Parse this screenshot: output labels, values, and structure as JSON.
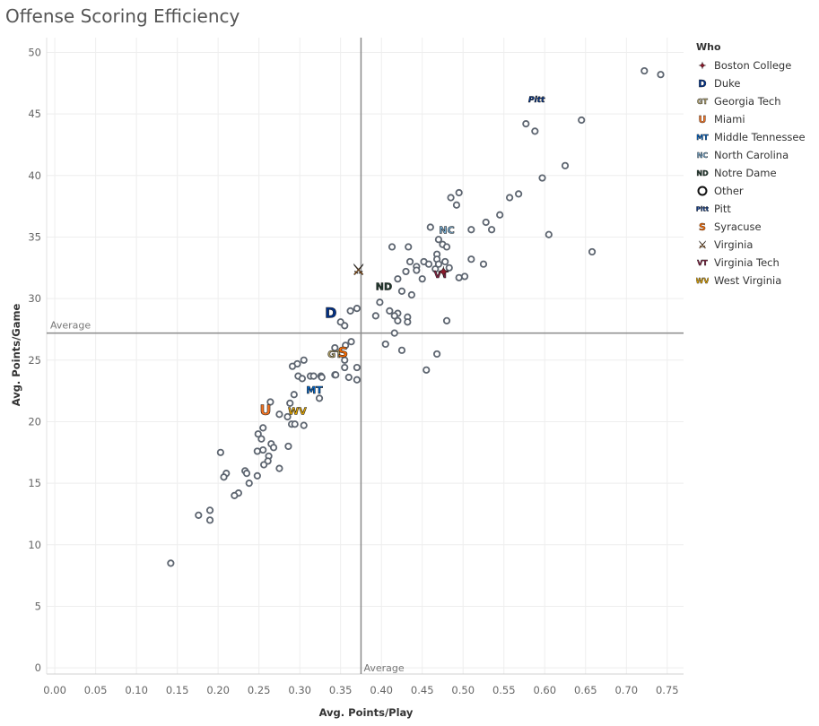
{
  "title": "Offense Scoring Efficiency",
  "legend": {
    "title": "Who",
    "items": [
      {
        "label": "Boston College",
        "color": "#8b1a2b",
        "icon": "boston-college-logo-icon",
        "glyph": "✦"
      },
      {
        "label": "Duke",
        "color": "#003087",
        "icon": "duke-logo-icon",
        "glyph": "D"
      },
      {
        "label": "Georgia Tech",
        "color": "#b3a369",
        "icon": "georgia-tech-logo-icon",
        "glyph": "GT"
      },
      {
        "label": "Miami",
        "color": "#f47321",
        "icon": "miami-logo-icon",
        "glyph": "U"
      },
      {
        "label": "Middle Tennessee",
        "color": "#0066cc",
        "icon": "middle-tennessee-logo-icon",
        "glyph": "MT"
      },
      {
        "label": "North Carolina",
        "color": "#7bafd4",
        "icon": "north-carolina-logo-icon",
        "glyph": "NC"
      },
      {
        "label": "Notre Dame",
        "color": "#1f3a2e",
        "icon": "notre-dame-logo-icon",
        "glyph": "ND"
      },
      {
        "label": "Other",
        "color": "#222222",
        "icon": "circle-icon",
        "glyph": ""
      },
      {
        "label": "Pitt",
        "color": "#003594",
        "icon": "pitt-logo-icon",
        "glyph": "Pitt"
      },
      {
        "label": "Syracuse",
        "color": "#f76900",
        "icon": "syracuse-logo-icon",
        "glyph": "S"
      },
      {
        "label": "Virginia",
        "color": "#e57200",
        "icon": "virginia-logo-icon",
        "glyph": "⚔"
      },
      {
        "label": "Virginia Tech",
        "color": "#861f41",
        "icon": "virginia-tech-logo-icon",
        "glyph": "VT"
      },
      {
        "label": "West Virginia",
        "color": "#eaaa00",
        "icon": "west-virginia-logo-icon",
        "glyph": "WV"
      }
    ]
  },
  "chart_data": {
    "type": "scatter",
    "title": "Offense Scoring Efficiency",
    "xlabel": "Avg. Points/Play",
    "ylabel": "Avg. Points/Game",
    "xlim": [
      -0.01,
      0.77
    ],
    "ylim": [
      -0.5,
      51.2
    ],
    "xticks": [
      0.0,
      0.05,
      0.1,
      0.15,
      0.2,
      0.25,
      0.3,
      0.35,
      0.4,
      0.45,
      0.5,
      0.55,
      0.6,
      0.65,
      0.7,
      0.75
    ],
    "xtick_labels": [
      "0.00",
      "0.05",
      "0.10",
      "0.15",
      "0.20",
      "0.25",
      "0.30",
      "0.35",
      "0.40",
      "0.45",
      "0.50",
      "0.55",
      "0.60",
      "0.65",
      "0.70",
      "0.75"
    ],
    "yticks": [
      0,
      5,
      10,
      15,
      20,
      25,
      30,
      35,
      40,
      45,
      50
    ],
    "grid": true,
    "reference_lines": {
      "x": 0.375,
      "y": 27.2,
      "x_label": "Average",
      "y_label": "Average"
    },
    "teams": [
      {
        "team": "Pitt",
        "x": 0.59,
        "y": 46.2
      },
      {
        "team": "North Carolina",
        "x": 0.48,
        "y": 35.6
      },
      {
        "team": "Virginia",
        "x": 0.372,
        "y": 32.4
      },
      {
        "team": "Virginia Tech",
        "x": 0.473,
        "y": 32.0
      },
      {
        "team": "Boston College",
        "x": 0.476,
        "y": 32.2
      },
      {
        "team": "Notre Dame",
        "x": 0.403,
        "y": 31.0
      },
      {
        "team": "Duke",
        "x": 0.338,
        "y": 28.9
      },
      {
        "team": "Georgia Tech",
        "x": 0.343,
        "y": 25.5
      },
      {
        "team": "Syracuse",
        "x": 0.353,
        "y": 25.7
      },
      {
        "team": "Middle Tennessee",
        "x": 0.318,
        "y": 22.6
      },
      {
        "team": "Miami",
        "x": 0.258,
        "y": 21.0
      },
      {
        "team": "West Virginia",
        "x": 0.297,
        "y": 20.9
      }
    ],
    "other": [
      [
        0.722,
        48.5
      ],
      [
        0.742,
        48.2
      ],
      [
        0.577,
        44.2
      ],
      [
        0.588,
        43.6
      ],
      [
        0.645,
        44.5
      ],
      [
        0.625,
        40.8
      ],
      [
        0.597,
        39.8
      ],
      [
        0.557,
        38.2
      ],
      [
        0.568,
        38.5
      ],
      [
        0.495,
        38.6
      ],
      [
        0.485,
        38.2
      ],
      [
        0.492,
        37.6
      ],
      [
        0.545,
        36.8
      ],
      [
        0.528,
        36.2
      ],
      [
        0.535,
        35.6
      ],
      [
        0.605,
        35.2
      ],
      [
        0.51,
        35.6
      ],
      [
        0.46,
        35.8
      ],
      [
        0.47,
        34.8
      ],
      [
        0.475,
        34.4
      ],
      [
        0.48,
        34.2
      ],
      [
        0.413,
        34.2
      ],
      [
        0.433,
        34.2
      ],
      [
        0.658,
        33.8
      ],
      [
        0.468,
        33.6
      ],
      [
        0.468,
        33.2
      ],
      [
        0.478,
        33.0
      ],
      [
        0.51,
        33.2
      ],
      [
        0.525,
        32.8
      ],
      [
        0.435,
        33.0
      ],
      [
        0.452,
        33.0
      ],
      [
        0.443,
        32.6
      ],
      [
        0.458,
        32.8
      ],
      [
        0.47,
        32.8
      ],
      [
        0.483,
        32.5
      ],
      [
        0.466,
        32.4
      ],
      [
        0.43,
        32.2
      ],
      [
        0.443,
        32.3
      ],
      [
        0.45,
        31.6
      ],
      [
        0.495,
        31.7
      ],
      [
        0.502,
        31.8
      ],
      [
        0.42,
        31.6
      ],
      [
        0.425,
        30.6
      ],
      [
        0.437,
        30.3
      ],
      [
        0.398,
        29.7
      ],
      [
        0.37,
        29.2
      ],
      [
        0.362,
        29.0
      ],
      [
        0.41,
        29.0
      ],
      [
        0.42,
        28.8
      ],
      [
        0.416,
        28.6
      ],
      [
        0.393,
        28.6
      ],
      [
        0.432,
        28.5
      ],
      [
        0.432,
        28.1
      ],
      [
        0.42,
        28.2
      ],
      [
        0.48,
        28.2
      ],
      [
        0.35,
        28.1
      ],
      [
        0.355,
        27.8
      ],
      [
        0.416,
        27.2
      ],
      [
        0.363,
        26.5
      ],
      [
        0.405,
        26.3
      ],
      [
        0.356,
        26.2
      ],
      [
        0.343,
        26.0
      ],
      [
        0.425,
        25.8
      ],
      [
        0.468,
        25.5
      ],
      [
        0.355,
        25.0
      ],
      [
        0.305,
        25.0
      ],
      [
        0.297,
        24.7
      ],
      [
        0.291,
        24.5
      ],
      [
        0.355,
        24.4
      ],
      [
        0.37,
        24.4
      ],
      [
        0.455,
        24.2
      ],
      [
        0.298,
        23.7
      ],
      [
        0.303,
        23.5
      ],
      [
        0.313,
        23.7
      ],
      [
        0.317,
        23.7
      ],
      [
        0.326,
        23.7
      ],
      [
        0.327,
        23.6
      ],
      [
        0.343,
        23.8
      ],
      [
        0.344,
        23.8
      ],
      [
        0.36,
        23.6
      ],
      [
        0.37,
        23.4
      ],
      [
        0.293,
        22.2
      ],
      [
        0.324,
        21.9
      ],
      [
        0.264,
        21.6
      ],
      [
        0.288,
        21.5
      ],
      [
        0.275,
        20.6
      ],
      [
        0.285,
        20.4
      ],
      [
        0.29,
        19.8
      ],
      [
        0.294,
        19.8
      ],
      [
        0.305,
        19.7
      ],
      [
        0.255,
        19.5
      ],
      [
        0.249,
        19.0
      ],
      [
        0.253,
        18.6
      ],
      [
        0.265,
        18.2
      ],
      [
        0.268,
        17.9
      ],
      [
        0.286,
        18.0
      ],
      [
        0.248,
        17.6
      ],
      [
        0.255,
        17.7
      ],
      [
        0.262,
        17.2
      ],
      [
        0.261,
        16.8
      ],
      [
        0.256,
        16.5
      ],
      [
        0.275,
        16.2
      ],
      [
        0.203,
        17.5
      ],
      [
        0.21,
        15.8
      ],
      [
        0.207,
        15.5
      ],
      [
        0.233,
        16.0
      ],
      [
        0.235,
        15.8
      ],
      [
        0.248,
        15.6
      ],
      [
        0.238,
        15.0
      ],
      [
        0.225,
        14.2
      ],
      [
        0.22,
        14.0
      ],
      [
        0.19,
        12.8
      ],
      [
        0.176,
        12.4
      ],
      [
        0.19,
        12.0
      ],
      [
        0.142,
        8.5
      ]
    ]
  }
}
